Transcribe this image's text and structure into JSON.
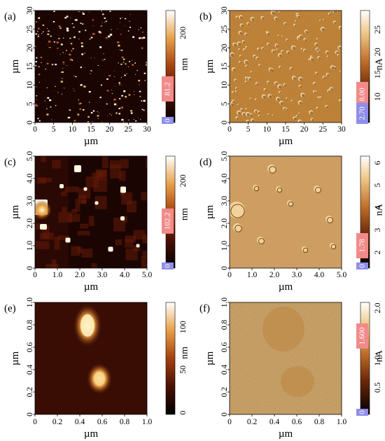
{
  "figure": {
    "panels": [
      {
        "label": "(a)",
        "kind": "height",
        "axis_unit": "µm",
        "x_ticks": [
          "0",
          "5",
          "10",
          "15",
          "20",
          "25",
          "30"
        ],
        "y_ticks": [
          "0",
          "5",
          "10",
          "15",
          "20",
          "25",
          "30"
        ],
        "colorbar": {
          "unit": "nm",
          "ticks": [
            "200"
          ],
          "marker": "81.2",
          "min_box": "0"
        }
      },
      {
        "label": "(b)",
        "kind": "current",
        "axis_unit": "µm",
        "x_ticks": [
          "0",
          "5",
          "10",
          "15",
          "20",
          "25",
          "30"
        ],
        "y_ticks": [
          "0",
          "5",
          "10",
          "15",
          "20",
          "25",
          "30"
        ],
        "colorbar": {
          "unit": "nA",
          "ticks": [
            "25",
            "20",
            "15",
            "10"
          ],
          "marker": "8.00",
          "min_box": "2.70"
        }
      },
      {
        "label": "(c)",
        "kind": "height",
        "axis_unit": "µm",
        "x_ticks": [
          "0",
          "1.0",
          "2.0",
          "3.0",
          "4.0",
          "5.0"
        ],
        "y_ticks": [
          "0",
          "1.0",
          "2.0",
          "3.0",
          "4.0",
          "5.0"
        ],
        "colorbar": {
          "unit": "nm",
          "ticks": [
            "200"
          ],
          "marker": "102.2",
          "min_box": "0"
        }
      },
      {
        "label": "(d)",
        "kind": "current",
        "axis_unit": "µm",
        "x_ticks": [
          "0",
          "1.0",
          "2.0",
          "3.0",
          "4.0",
          "5.0"
        ],
        "y_ticks": [
          "0",
          "1.0",
          "2.0",
          "3.0",
          "4.0",
          "5.0"
        ],
        "colorbar": {
          "unit": "nA",
          "ticks": [
            "6",
            "5",
            "4",
            "3",
            "2"
          ],
          "marker": "1.78",
          "min_box": "0"
        }
      },
      {
        "label": "(e)",
        "kind": "height",
        "axis_unit": "µm",
        "x_ticks": [
          "0",
          "0.2",
          "0.4",
          "0.6",
          "0.8",
          "1.0"
        ],
        "y_ticks": [
          "0",
          "0.2",
          "0.4",
          "0.6",
          "0.8",
          "1.0"
        ],
        "colorbar": {
          "unit": "nm",
          "ticks": [
            "100",
            "50",
            "0"
          ],
          "marker": "",
          "min_box": ""
        }
      },
      {
        "label": "(f)",
        "kind": "current",
        "axis_unit": "µm",
        "x_ticks": [
          "0",
          "0.2",
          "0.4",
          "0.6",
          "0.8",
          "1.0"
        ],
        "y_ticks": [
          "0",
          "0.2",
          "0.4",
          "0.6",
          "0.8",
          "1.0"
        ],
        "colorbar": {
          "unit": "nA",
          "ticks": [
            "2.0",
            "1.0",
            "0.5"
          ],
          "marker": "1.600",
          "min_box": "0"
        }
      }
    ],
    "colors": {
      "height_dark": "#1a0502",
      "height_mid": "#5a1a08",
      "height_bright": "#f0c060",
      "height_white": "#fff8e0",
      "current_base": "#c98a3c",
      "current_light": "#f0d29a",
      "current_dark": "#7a4a1c",
      "marker_pink": "#f28a8a",
      "min_blue": "#8f8fe8"
    }
  }
}
